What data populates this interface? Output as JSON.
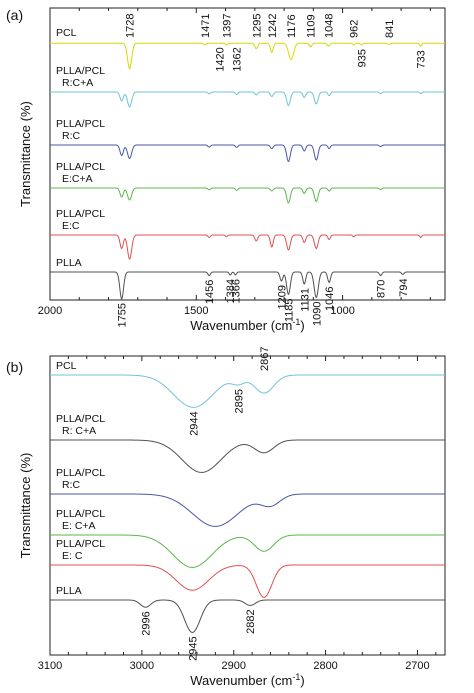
{
  "chart_data": [
    {
      "panel": "(a)",
      "type": "line",
      "xlabel": "Wavenumber (cm",
      "xlabel_sup": "-1",
      "xlabel_end": ")",
      "ylabel": "Transmittance (%)",
      "xlim": [
        2000,
        650
      ],
      "x_reversed": true,
      "xticks": [
        2000,
        1500,
        1000
      ],
      "series": [
        {
          "name": "PCL",
          "label_lines": [
            "PCL"
          ],
          "color": "#d8d800",
          "baseline": 0.04,
          "peaks": [
            [
              1728,
              0.85,
              10
            ],
            [
              1471,
              0.06,
              5
            ],
            [
              1397,
              0.06,
              5
            ],
            [
              1295,
              0.18,
              7
            ],
            [
              1242,
              0.3,
              7
            ],
            [
              1176,
              0.55,
              12
            ],
            [
              1109,
              0.12,
              6
            ],
            [
              1048,
              0.1,
              6
            ],
            [
              962,
              0.06,
              5
            ],
            [
              935,
              0.06,
              5
            ],
            [
              841,
              0.05,
              5
            ],
            [
              733,
              0.1,
              5
            ]
          ]
        },
        {
          "name": "PLLA/PCL R:C+A",
          "label_lines": [
            "PLLA/PCL",
            "R:C+A"
          ],
          "color": "#6fc4d8",
          "baseline": 0.0,
          "peaks": [
            [
              1755,
              0.3,
              8
            ],
            [
              1728,
              0.5,
              10
            ],
            [
              1456,
              0.06,
              6
            ],
            [
              1362,
              0.08,
              6
            ],
            [
              1295,
              0.1,
              6
            ],
            [
              1242,
              0.15,
              7
            ],
            [
              1185,
              0.45,
              9
            ],
            [
              1131,
              0.18,
              7
            ],
            [
              1090,
              0.4,
              9
            ],
            [
              1046,
              0.12,
              6
            ],
            [
              870,
              0.05,
              6
            ],
            [
              733,
              0.05,
              5
            ]
          ]
        },
        {
          "name": "PLLA/PCL R:C",
          "label_lines": [
            "PLLA/PCL",
            "R:C"
          ],
          "color": "#4a56a8",
          "baseline": 0.0,
          "peaks": [
            [
              1755,
              0.35,
              8
            ],
            [
              1728,
              0.45,
              10
            ],
            [
              1456,
              0.07,
              6
            ],
            [
              1362,
              0.08,
              6
            ],
            [
              1242,
              0.12,
              7
            ],
            [
              1185,
              0.55,
              9
            ],
            [
              1131,
              0.2,
              7
            ],
            [
              1090,
              0.5,
              9
            ],
            [
              1046,
              0.12,
              6
            ],
            [
              870,
              0.05,
              6
            ]
          ]
        },
        {
          "name": "PLLA/PCL E:C+A",
          "label_lines": [
            "PLLA/PCL",
            "E:C+A"
          ],
          "color": "#5ab84a",
          "baseline": 0.0,
          "peaks": [
            [
              1755,
              0.3,
              8
            ],
            [
              1728,
              0.4,
              10
            ],
            [
              1456,
              0.06,
              6
            ],
            [
              1362,
              0.08,
              6
            ],
            [
              1242,
              0.1,
              7
            ],
            [
              1185,
              0.5,
              9
            ],
            [
              1131,
              0.18,
              7
            ],
            [
              1090,
              0.45,
              9
            ],
            [
              1046,
              0.1,
              6
            ],
            [
              870,
              0.05,
              6
            ]
          ]
        },
        {
          "name": "PLLA/PCL E:C",
          "label_lines": [
            "PLLA/PCL",
            "E:C"
          ],
          "color": "#e05050",
          "baseline": 0.0,
          "peaks": [
            [
              1755,
              0.45,
              8
            ],
            [
              1728,
              0.8,
              10
            ],
            [
              1456,
              0.08,
              6
            ],
            [
              1397,
              0.06,
              5
            ],
            [
              1295,
              0.2,
              7
            ],
            [
              1242,
              0.4,
              7
            ],
            [
              1185,
              0.5,
              9
            ],
            [
              1131,
              0.25,
              7
            ],
            [
              1090,
              0.45,
              9
            ],
            [
              1046,
              0.15,
              6
            ],
            [
              962,
              0.06,
              5
            ],
            [
              733,
              0.08,
              5
            ]
          ]
        },
        {
          "name": "PLLA",
          "label_lines": [
            "PLLA"
          ],
          "color": "#505050",
          "baseline": 0.0,
          "peaks": [
            [
              1755,
              0.9,
              9
            ],
            [
              1456,
              0.12,
              6
            ],
            [
              1384,
              0.1,
              5
            ],
            [
              1366,
              0.1,
              5
            ],
            [
              1209,
              0.3,
              7
            ],
            [
              1185,
              0.75,
              9
            ],
            [
              1131,
              0.4,
              7
            ],
            [
              1090,
              0.85,
              10
            ],
            [
              1046,
              0.35,
              7
            ],
            [
              870,
              0.12,
              6
            ],
            [
              794,
              0.08,
              6
            ]
          ]
        }
      ],
      "annotations": [
        {
          "text": "1728",
          "x": 1728,
          "series": 0,
          "pos": "above"
        },
        {
          "text": "1471",
          "x": 1471,
          "series": 0,
          "pos": "above"
        },
        {
          "text": "1397",
          "x": 1397,
          "series": 0,
          "pos": "above"
        },
        {
          "text": "1295",
          "x": 1295,
          "series": 0,
          "pos": "above"
        },
        {
          "text": "1242",
          "x": 1242,
          "series": 0,
          "pos": "above"
        },
        {
          "text": "1176",
          "x": 1176,
          "series": 0,
          "pos": "above"
        },
        {
          "text": "1109",
          "x": 1109,
          "series": 0,
          "pos": "above"
        },
        {
          "text": "1048",
          "x": 1048,
          "series": 0,
          "pos": "above"
        },
        {
          "text": "962",
          "x": 962,
          "series": 0,
          "pos": "above"
        },
        {
          "text": "841",
          "x": 841,
          "series": 0,
          "pos": "above"
        },
        {
          "text": "1420",
          "x": 1420,
          "series": 0,
          "pos": "below"
        },
        {
          "text": "1362",
          "x": 1362,
          "series": 0,
          "pos": "below"
        },
        {
          "text": "935",
          "x": 935,
          "series": 0,
          "pos": "below"
        },
        {
          "text": "733",
          "x": 733,
          "series": 0,
          "pos": "below"
        },
        {
          "text": "1755",
          "x": 1755,
          "series": 5,
          "pos": "below"
        },
        {
          "text": "1456",
          "x": 1456,
          "series": 5,
          "pos": "below"
        },
        {
          "text": "1384",
          "x": 1384,
          "series": 5,
          "pos": "below"
        },
        {
          "text": "1366",
          "x": 1366,
          "series": 5,
          "pos": "below"
        },
        {
          "text": "1209",
          "x": 1209,
          "series": 5,
          "pos": "below"
        },
        {
          "text": "1185",
          "x": 1185,
          "series": 5,
          "pos": "below"
        },
        {
          "text": "1131",
          "x": 1131,
          "series": 5,
          "pos": "below"
        },
        {
          "text": "1090",
          "x": 1090,
          "series": 5,
          "pos": "below"
        },
        {
          "text": "1046",
          "x": 1046,
          "series": 5,
          "pos": "below"
        },
        {
          "text": "870",
          "x": 870,
          "series": 5,
          "pos": "below"
        },
        {
          "text": "794",
          "x": 794,
          "series": 5,
          "pos": "below"
        }
      ]
    },
    {
      "panel": "(b)",
      "type": "line",
      "xlabel": "Wavenumber (cm",
      "xlabel_sup": "-1",
      "xlabel_end": ")",
      "ylabel": "Transmittance (%)",
      "xlim": [
        3100,
        2670
      ],
      "x_reversed": true,
      "xticks": [
        3100,
        3000,
        2900,
        2800,
        2700
      ],
      "series": [
        {
          "name": "PCL",
          "label_lines": [
            "PCL"
          ],
          "color": "#6fc4d8",
          "baseline": 0.0,
          "peaks": [
            [
              2944,
              0.9,
              30
            ],
            [
              2895,
              0.2,
              10
            ],
            [
              2867,
              0.5,
              15
            ]
          ]
        },
        {
          "name": "PLLA/PCL R: C+A",
          "label_lines": [
            "PLLA/PCL",
            "R: C+A"
          ],
          "color": "#505050",
          "baseline": 0.0,
          "peaks": [
            [
              2935,
              0.9,
              30
            ],
            [
              2867,
              0.35,
              15
            ]
          ]
        },
        {
          "name": "PLLA/PCL R:C",
          "label_lines": [
            "PLLA/PCL",
            "R:C"
          ],
          "color": "#4a56a8",
          "baseline": 0.0,
          "peaks": [
            [
              2920,
              0.9,
              35
            ],
            [
              2860,
              0.3,
              15
            ]
          ]
        },
        {
          "name": "PLLA/PCL E: C+A",
          "label_lines": [
            "PLLA/PCL",
            "E: C+A"
          ],
          "color": "#5ab84a",
          "baseline": 0.0,
          "peaks": [
            [
              2945,
              0.9,
              30
            ],
            [
              2867,
              0.45,
              15
            ]
          ]
        },
        {
          "name": "PLLA/PCL E: C",
          "label_lines": [
            "PLLA/PCL",
            "E: C"
          ],
          "color": "#e05050",
          "baseline": 0.0,
          "peaks": [
            [
              2945,
              0.7,
              25
            ],
            [
              2867,
              0.9,
              12
            ]
          ]
        },
        {
          "name": "PLLA",
          "label_lines": [
            "PLLA"
          ],
          "color": "#505050",
          "baseline": 0.0,
          "peaks": [
            [
              2996,
              0.2,
              8
            ],
            [
              2945,
              0.9,
              12
            ],
            [
              2882,
              0.15,
              8
            ]
          ]
        }
      ],
      "annotations": [
        {
          "text": "2944",
          "x": 2944,
          "series": 0,
          "pos": "below"
        },
        {
          "text": "2895",
          "x": 2895,
          "series": 0,
          "pos": "below"
        },
        {
          "text": "2867",
          "x": 2867,
          "series": 0,
          "pos": "above"
        },
        {
          "text": "2996",
          "x": 2996,
          "series": 5,
          "pos": "below"
        },
        {
          "text": "2945",
          "x": 2945,
          "series": 5,
          "pos": "below"
        },
        {
          "text": "2882",
          "x": 2882,
          "series": 5,
          "pos": "below"
        }
      ]
    }
  ]
}
